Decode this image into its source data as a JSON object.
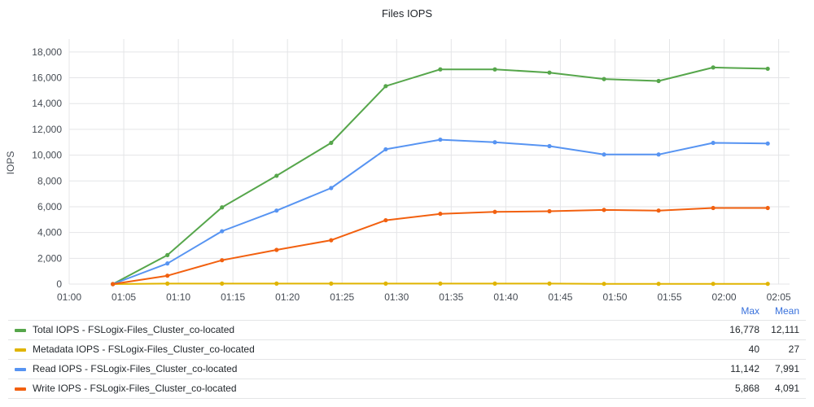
{
  "chart_data": {
    "type": "line",
    "title": "Files IOPS",
    "ylabel": "IOPS",
    "xlabel": "",
    "ylim": [
      0,
      19000
    ],
    "xlim": [
      "01:00",
      "02:06"
    ],
    "y_ticks": [
      "0",
      "2,000",
      "4,000",
      "6,000",
      "8,000",
      "10,000",
      "12,000",
      "14,000",
      "16,000",
      "18,000"
    ],
    "x_ticks": [
      "01:00",
      "01:05",
      "01:10",
      "01:15",
      "01:20",
      "01:25",
      "01:30",
      "01:35",
      "01:40",
      "01:45",
      "01:50",
      "01:55",
      "02:00",
      "02:05"
    ],
    "grid": true,
    "legend_position": "bottom",
    "x": [
      "01:04",
      "01:09",
      "01:14",
      "01:19",
      "01:24",
      "01:29",
      "01:34",
      "01:39",
      "01:44",
      "01:49",
      "01:54",
      "01:59",
      "02:04"
    ],
    "series": [
      {
        "name": "Total IOPS - FSLogix-Files_Cluster_co-located",
        "color": "#56a64b",
        "values": [
          0,
          2250,
          5950,
          8400,
          10950,
          15350,
          16650,
          16650,
          16400,
          15900,
          15750,
          16800,
          16700
        ],
        "max": "16,778",
        "mean": "12,111"
      },
      {
        "name": "Metadata IOPS - FSLogix-Files_Cluster_co-located",
        "color": "#e0b400",
        "values": [
          0,
          40,
          40,
          40,
          40,
          40,
          40,
          40,
          40,
          20,
          20,
          20,
          20
        ],
        "max": "40",
        "mean": "27"
      },
      {
        "name": "Read IOPS - FSLogix-Files_Cluster_co-located",
        "color": "#5794f2",
        "values": [
          0,
          1600,
          4100,
          5700,
          7450,
          10450,
          11200,
          11000,
          10700,
          10050,
          10050,
          10950,
          10900
        ],
        "max": "11,142",
        "mean": "7,991"
      },
      {
        "name": "Write IOPS - FSLogix-Files_Cluster_co-located",
        "color": "#f2600f",
        "values": [
          0,
          650,
          1850,
          2650,
          3400,
          4950,
          5450,
          5600,
          5650,
          5750,
          5700,
          5900,
          5900
        ],
        "max": "5,868",
        "mean": "4,091"
      }
    ]
  },
  "legend": {
    "max_header": "Max",
    "mean_header": "Mean"
  }
}
